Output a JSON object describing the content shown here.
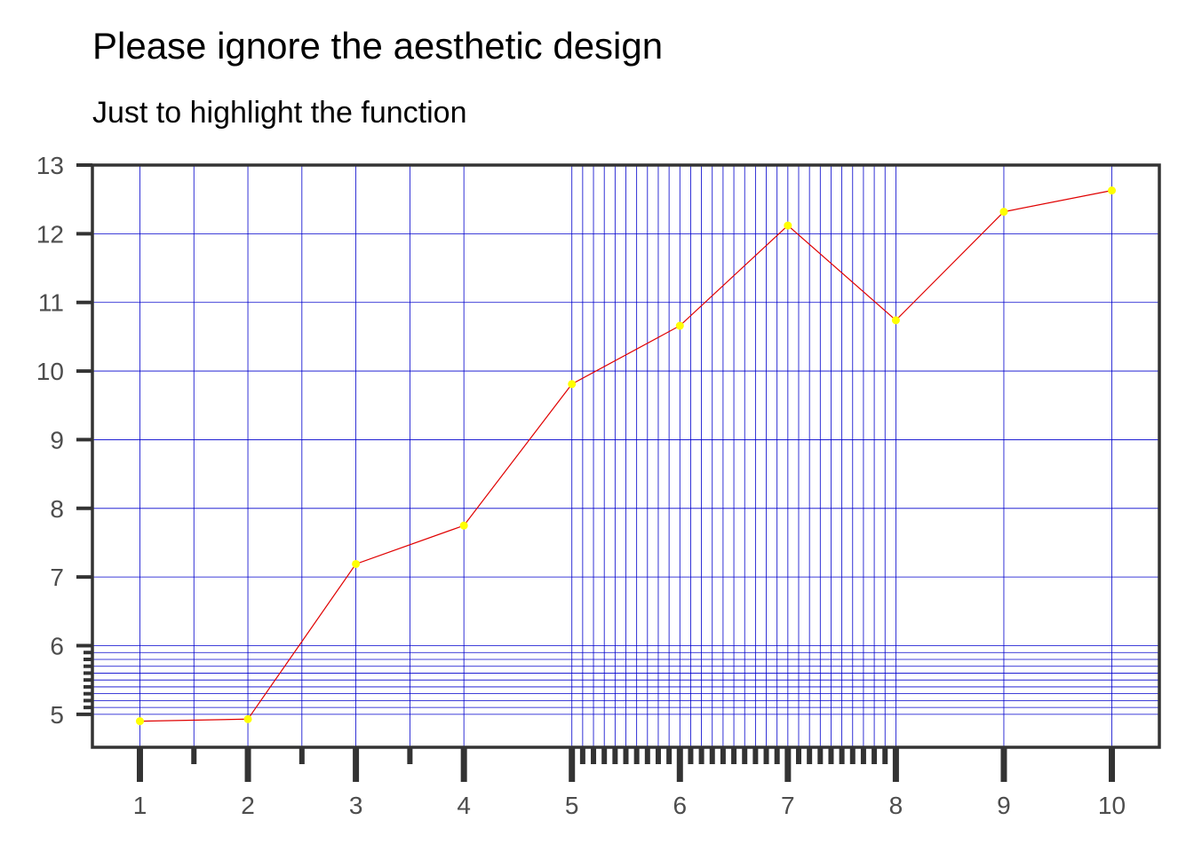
{
  "chart_data": {
    "type": "line",
    "title": "Please ignore the aesthetic design",
    "subtitle": "Just to highlight the function",
    "xlabel": "",
    "ylabel": "",
    "xlim": [
      0.56,
      10.44
    ],
    "ylim": [
      4.52,
      13
    ],
    "x_ticks": [
      1,
      2,
      3,
      4,
      5,
      6,
      7,
      8,
      9,
      10
    ],
    "x_tick_labels": [
      "1",
      "2",
      "3",
      "4",
      "5",
      "6",
      "7",
      "8",
      "9",
      "10"
    ],
    "y_ticks": [
      5,
      6,
      7,
      8,
      9,
      10,
      11,
      12,
      13
    ],
    "y_tick_labels": [
      "5",
      "6",
      "7",
      "8",
      "9",
      "10",
      "11",
      "12",
      "13"
    ],
    "x_minor_ticks": [
      1.5,
      2.5,
      3.5,
      5.1,
      5.2,
      5.3,
      5.4,
      5.5,
      5.6,
      5.7,
      5.8,
      5.9,
      6.1,
      6.2,
      6.3,
      6.4,
      6.5,
      6.6,
      6.7,
      6.8,
      6.9,
      7.1,
      7.2,
      7.3,
      7.4,
      7.5,
      7.6,
      7.7,
      7.8,
      7.9
    ],
    "y_minor_ticks": [
      5.1,
      5.2,
      5.3,
      5.4,
      5.5,
      5.6,
      5.7,
      5.8,
      5.9
    ],
    "grid": true,
    "grid_color": "#0000cc",
    "line_color": "#e00000",
    "point_color": "#ffff00",
    "axis_color": "#333333",
    "series": [
      {
        "x": [
          1,
          2,
          3,
          4,
          5,
          6,
          7,
          8,
          9,
          10
        ],
        "values": [
          4.9,
          4.93,
          7.19,
          7.75,
          9.81,
          10.66,
          12.12,
          10.74,
          12.32,
          12.63
        ]
      }
    ]
  }
}
